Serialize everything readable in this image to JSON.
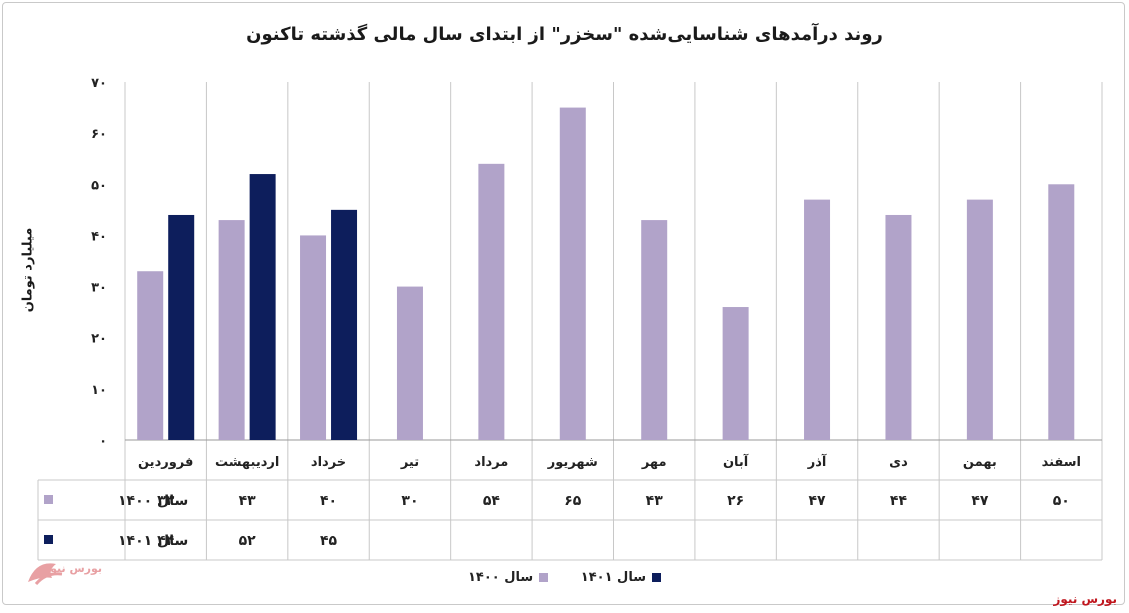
{
  "chart_data": {
    "type": "bar",
    "title": "روند درآمدهای شناسایی‌شده \"سخزر\" از ابتدای سال مالی گذشته تاکنون",
    "ylabel": "میلیارد تومان",
    "xlabel": "",
    "ylim": [
      0,
      70
    ],
    "yticks": [
      0,
      10,
      20,
      30,
      40,
      50,
      60,
      70
    ],
    "ytick_labels": [
      "۰",
      "۱۰",
      "۲۰",
      "۳۰",
      "۴۰",
      "۵۰",
      "۶۰",
      "۷۰"
    ],
    "grid": true,
    "legend_position": "bottom",
    "categories": [
      "فروردین",
      "اردیبهشت",
      "خرداد",
      "تیر",
      "مرداد",
      "شهریور",
      "مهر",
      "آبان",
      "آذر",
      "دی",
      "بهمن",
      "اسفند"
    ],
    "series": [
      {
        "name": "سال ۱۴۰۰",
        "color": "#b1a3c9",
        "values": [
          33,
          43,
          40,
          30,
          54,
          65,
          43,
          26,
          47,
          44,
          47,
          50
        ],
        "labels": [
          "۳۳",
          "۴۳",
          "۴۰",
          "۳۰",
          "۵۴",
          "۶۵",
          "۴۳",
          "۲۶",
          "۴۷",
          "۴۴",
          "۴۷",
          "۵۰"
        ]
      },
      {
        "name": "سال ۱۴۰۱",
        "color": "#0d1e5c",
        "values": [
          44,
          52,
          45,
          null,
          null,
          null,
          null,
          null,
          null,
          null,
          null,
          null
        ],
        "labels": [
          "۴۴",
          "۵۲",
          "۴۵",
          "",
          "",
          "",
          "",
          "",
          "",
          "",
          "",
          ""
        ]
      }
    ]
  },
  "watermark_text": "بورس نیوز",
  "source": "بورس نیوز",
  "colors": {
    "grid": "#c8c8c8",
    "accent": "#c0161e"
  }
}
